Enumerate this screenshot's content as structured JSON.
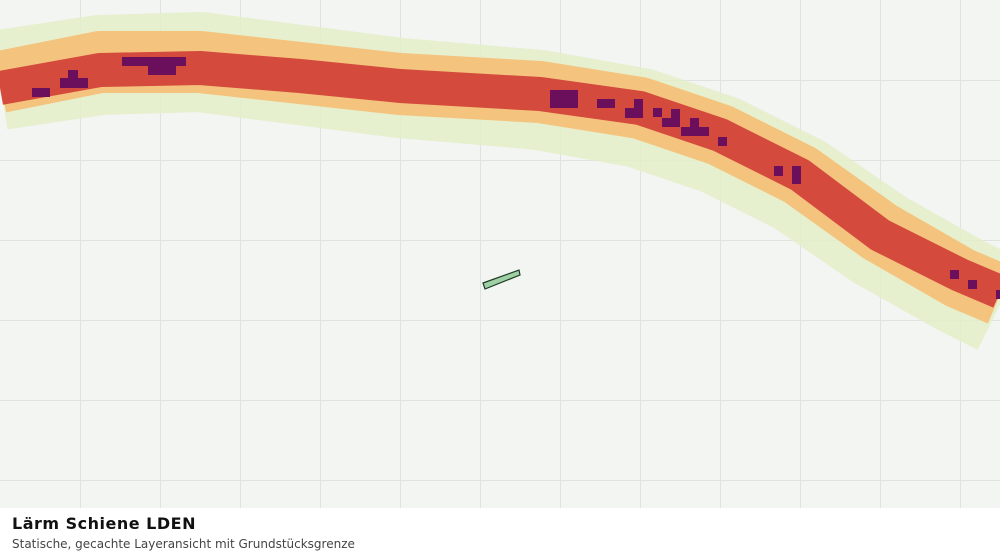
{
  "title": "Lärm Schiene LDEN",
  "subtitle": "Statische, gecachte Layeransicht mit Grundstücksgrenze"
}
